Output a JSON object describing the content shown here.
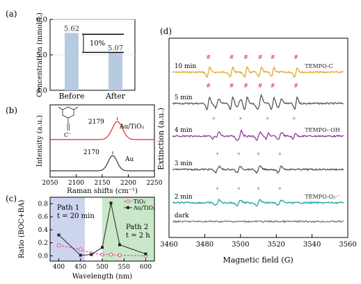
{
  "panels": {
    "a": {
      "label": "(a)",
      "chart_data": {
        "type": "bar",
        "categories": [
          "Before",
          "After"
        ],
        "values": [
          5.62,
          5.07
        ],
        "value_labels": [
          "5.62",
          "5.07"
        ],
        "ylabel": "Concentration (mmol/L)",
        "ylim": [
          4.0,
          6.0
        ],
        "yticks": [
          "4.0",
          "5.0",
          "6.0"
        ],
        "annotation": "10%",
        "bar_color": "#b7cbe0"
      }
    },
    "b": {
      "label": "(b)",
      "chart_data": {
        "type": "line",
        "xlabel": "Raman shifts (cm⁻¹)",
        "ylabel": "Intensity (a.u.)",
        "xlim": [
          2050,
          2250
        ],
        "xticks": [
          "2050",
          "2100",
          "2150",
          "2200",
          "2250"
        ],
        "series": [
          {
            "name": "Au/TiO₂",
            "peak": 2179,
            "peak_label": "2179",
            "color": "#e8252b"
          },
          {
            "name": "Au",
            "peak": 2170,
            "peak_label": "2170",
            "color": "#333333"
          }
        ],
        "molecule_label": "C⁻"
      }
    },
    "c": {
      "label": "(c)",
      "chart_data": {
        "type": "line",
        "xlabel": "Wavelength (nm)",
        "ylabel": "Ratio (BOC+BA)",
        "xlim": [
          380,
          620
        ],
        "ylim": [
          -0.08,
          0.9
        ],
        "xticks": [
          "400",
          "450",
          "500",
          "550",
          "600"
        ],
        "yticks": [
          "0.0",
          "0.2",
          "0.4",
          "0.6",
          "0.8"
        ],
        "series": [
          {
            "name": "TiO₂",
            "color": "#d63a8c",
            "x": [
              400,
              450,
              475,
              500,
              520,
              540,
              600
            ],
            "y": [
              0.16,
              0.1,
              0.04,
              0.02,
              0.02,
              0.01,
              0.0
            ]
          },
          {
            "name": "Au/TiO₂",
            "color": "#222222",
            "x": [
              400,
              450,
              475,
              500,
              520,
              540,
              600
            ],
            "y": [
              0.32,
              0.01,
              0.02,
              0.13,
              0.81,
              0.17,
              0.03
            ]
          }
        ],
        "path1_label": "Path 1",
        "path1_time": "t = 20 min",
        "path2_label": "Path 2",
        "path2_time": "t = 2 h"
      }
    },
    "d": {
      "label": "(d)",
      "chart_data": {
        "type": "line",
        "xlabel": "Magnetic field (G)",
        "ylabel": "Extinction (a.u.)",
        "xlim": [
          3460,
          3560
        ],
        "xticks": [
          "3460",
          "3480",
          "3500",
          "3520",
          "3540",
          "3560"
        ],
        "series": [
          {
            "name": "10 min",
            "color": "#e5a32a",
            "marker": "#",
            "species_label": "TEMPO-C"
          },
          {
            "name": "5 min",
            "color": "#555555",
            "marker": "#",
            "species_label": ""
          },
          {
            "name": "4 min",
            "color": "#8c3d9f",
            "marker": "*",
            "species_label": "TEMPO-·OH"
          },
          {
            "name": "3 min",
            "color": "#555555",
            "marker": "*",
            "species_label": ""
          },
          {
            "name": "2 min",
            "color": "#17a3a3",
            "marker": "*",
            "species_label": "TEMPO-O₂·⁻"
          },
          {
            "name": "dark",
            "color": "#777777",
            "marker": "",
            "species_label": ""
          }
        ]
      }
    }
  }
}
